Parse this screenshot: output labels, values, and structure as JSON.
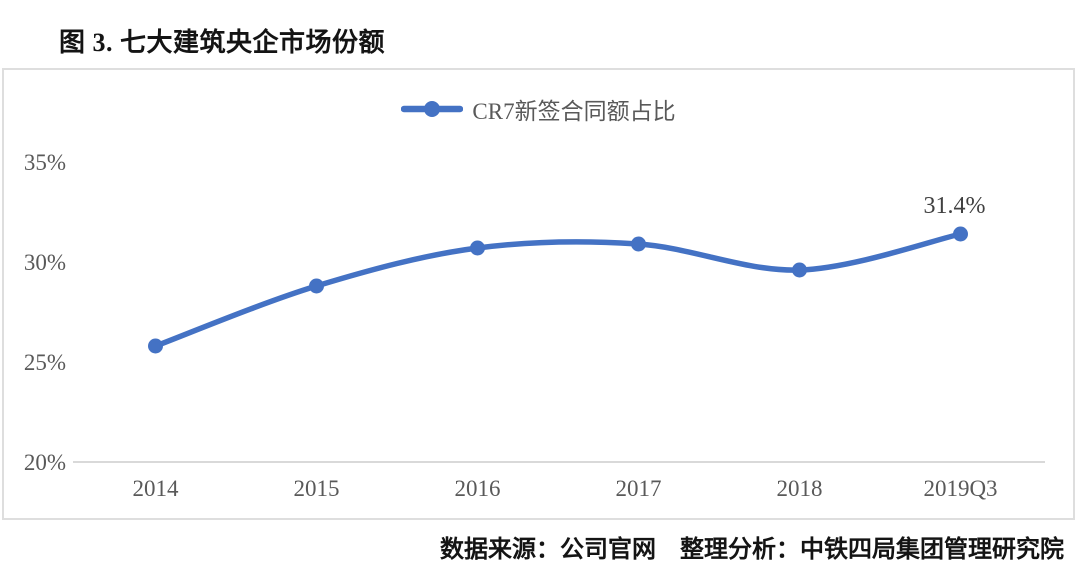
{
  "title": "图 3. 七大建筑央企市场份额",
  "footer": "数据来源：公司官网　整理分析：中铁四局集团管理研究院",
  "colors": {
    "series": "#4472C4",
    "axis_text": "#595959",
    "axis_line": "#D9D9D9",
    "box_border": "#DEDEDE",
    "data_label": "#404040"
  },
  "chart_data": {
    "type": "line",
    "smooth": true,
    "title": "图 3. 七大建筑央企市场份额",
    "xlabel": "",
    "ylabel": "",
    "legend_position": "top-center",
    "grid": false,
    "categories": [
      "2014",
      "2015",
      "2016",
      "2017",
      "2018",
      "2019Q3"
    ],
    "series": [
      {
        "name": "CR7新签合同额占比",
        "values": [
          25.8,
          28.8,
          30.7,
          30.9,
          29.6,
          31.4
        ]
      }
    ],
    "ylim": [
      20,
      35
    ],
    "yticks": [
      {
        "value": 20,
        "label": "20%"
      },
      {
        "value": 25,
        "label": "25%"
      },
      {
        "value": 30,
        "label": "30%"
      },
      {
        "value": 35,
        "label": "35%"
      }
    ],
    "data_labels": [
      {
        "series": 0,
        "index": 5,
        "text": "31.4%"
      }
    ]
  }
}
